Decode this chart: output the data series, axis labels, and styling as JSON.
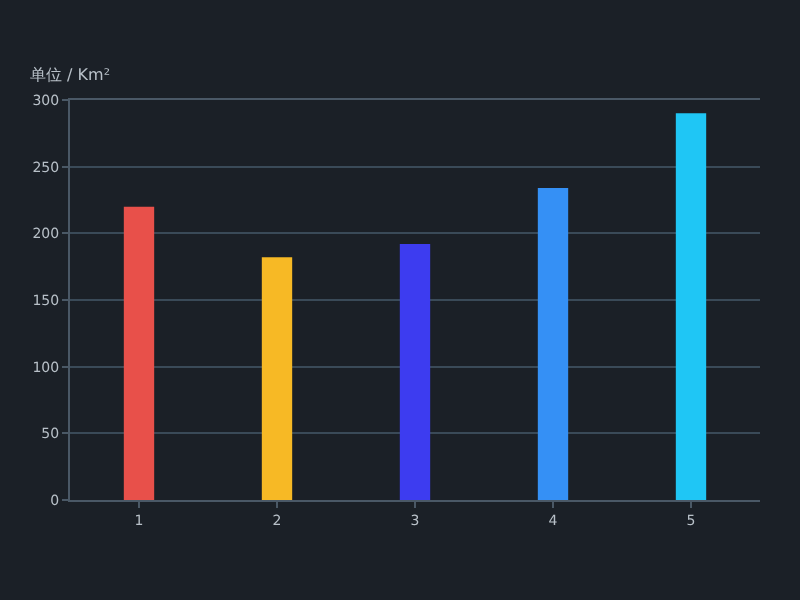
{
  "chart_data": {
    "type": "bar",
    "ylabel": "单位 / Km²",
    "categories": [
      "1",
      "2",
      "3",
      "4",
      "5"
    ],
    "values": [
      220,
      182,
      192,
      234,
      290
    ],
    "colors": [
      "#e8504a",
      "#f7b925",
      "#3d3cf0",
      "#3590f5",
      "#1fc6f5"
    ],
    "ylim": [
      0,
      300
    ],
    "yticks": [
      0,
      50,
      100,
      150,
      200,
      250,
      300
    ],
    "grid": "y"
  }
}
